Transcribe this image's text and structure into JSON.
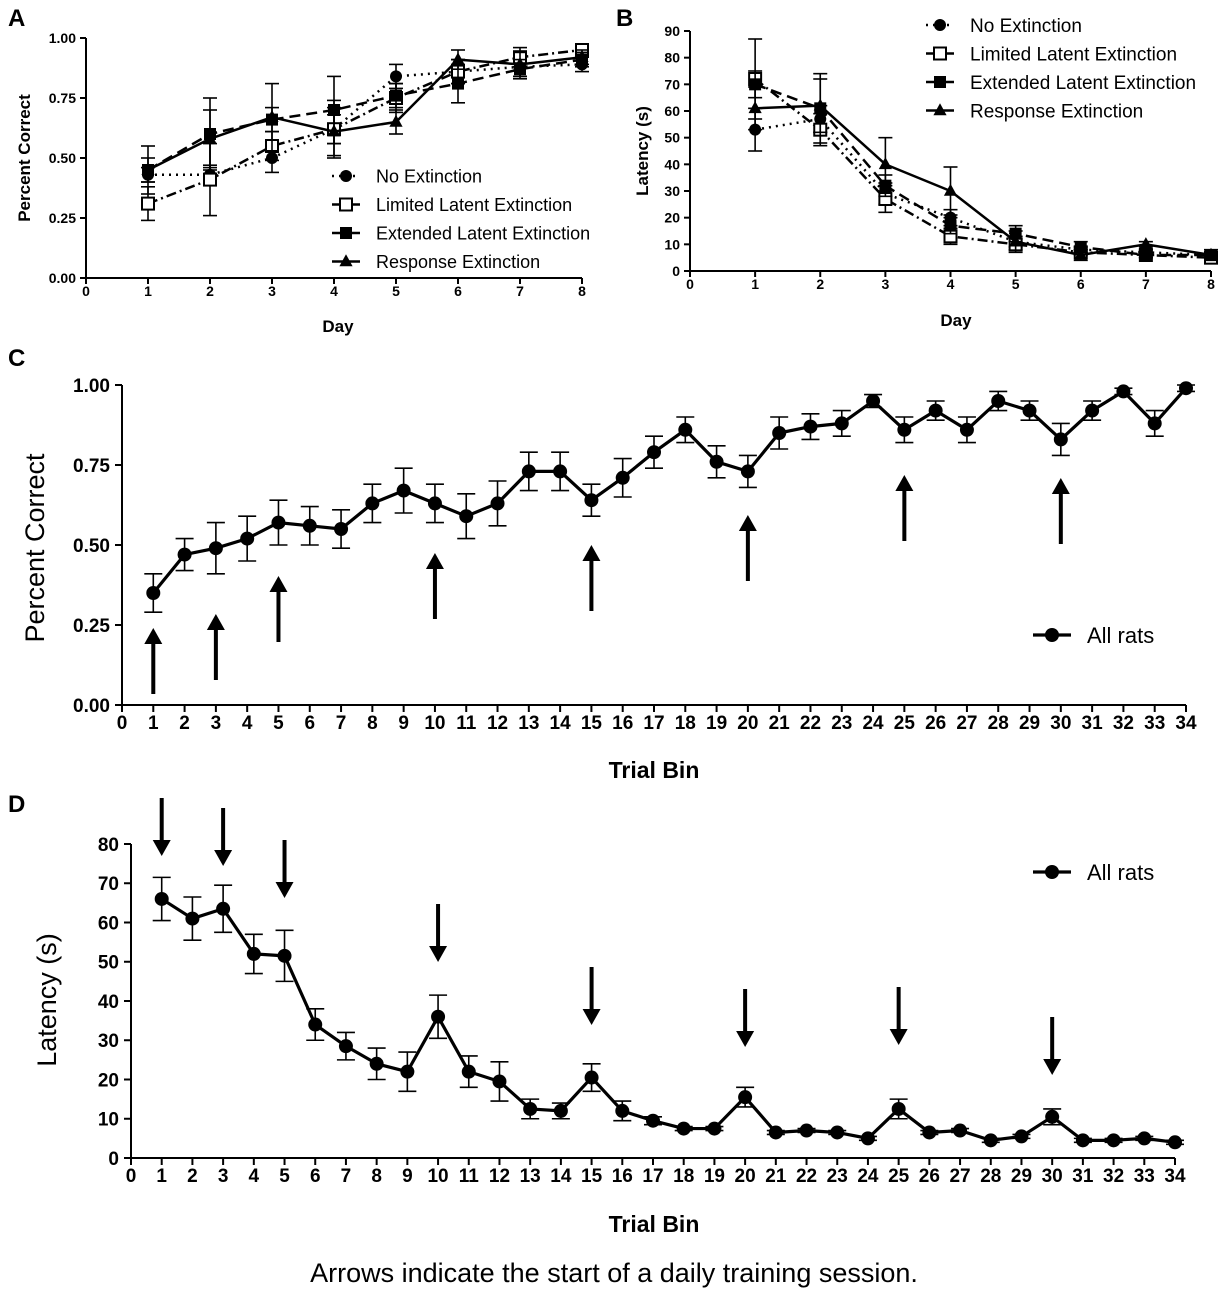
{
  "caption": "Arrows indicate the start of a daily training session.",
  "chart_data": [
    {
      "panel": "A",
      "type": "line",
      "xlabel": "Day",
      "ylabel": "Percent Correct",
      "xlim": [
        0,
        8
      ],
      "ylim": [
        0,
        1
      ],
      "x_ticks": [
        "0",
        "1",
        "2",
        "3",
        "4",
        "5",
        "6",
        "7",
        "8"
      ],
      "y_ticks": [
        "0.00",
        "0.25",
        "0.50",
        "0.75",
        "1.00"
      ],
      "legend_position": "bottom-right",
      "x": [
        1,
        2,
        3,
        4,
        5,
        6,
        7,
        8
      ],
      "series": [
        {
          "name": "No Extinction",
          "marker": "circle",
          "style": "dotted",
          "values": [
            0.43,
            0.43,
            0.5,
            0.62,
            0.84,
            0.86,
            0.88,
            0.89
          ],
          "errors": [
            0.03,
            0.04,
            0.06,
            0.06,
            0.05,
            0.05,
            0.04,
            0.03
          ]
        },
        {
          "name": "Limited Latent Extinction",
          "marker": "square-open",
          "style": "dash-dot",
          "values": [
            0.31,
            0.41,
            0.55,
            0.62,
            0.75,
            0.86,
            0.92,
            0.95
          ],
          "errors": [
            0.07,
            0.15,
            0.06,
            0.12,
            0.06,
            0.05,
            0.04,
            0.02
          ]
        },
        {
          "name": "Extended Latent Extinction",
          "marker": "square",
          "style": "dashed",
          "values": [
            0.45,
            0.6,
            0.66,
            0.7,
            0.76,
            0.81,
            0.87,
            0.91
          ],
          "errors": [
            0.05,
            0.15,
            0.05,
            0.14,
            0.05,
            0.08,
            0.04,
            0.03
          ]
        },
        {
          "name": "Response Extinction",
          "marker": "triangle",
          "style": "solid",
          "values": [
            0.45,
            0.58,
            0.67,
            0.61,
            0.65,
            0.91,
            0.89,
            0.92
          ],
          "errors": [
            0.1,
            0.12,
            0.14,
            0.1,
            0.05,
            0.04,
            0.05,
            0.03
          ]
        }
      ]
    },
    {
      "panel": "B",
      "type": "line",
      "xlabel": "Day",
      "ylabel": "Latency (s)",
      "xlim": [
        0,
        8
      ],
      "ylim": [
        0,
        90
      ],
      "x_ticks": [
        "0",
        "1",
        "2",
        "3",
        "4",
        "5",
        "6",
        "7",
        "8"
      ],
      "y_ticks": [
        "0",
        "10",
        "20",
        "30",
        "40",
        "50",
        "60",
        "70",
        "80",
        "90"
      ],
      "legend_position": "top-right",
      "x": [
        1,
        2,
        3,
        4,
        5,
        6,
        7,
        8
      ],
      "series": [
        {
          "name": "No Extinction",
          "marker": "circle",
          "style": "dotted",
          "values": [
            53,
            57,
            29,
            20,
            11,
            8,
            7,
            6
          ],
          "errors": [
            8,
            5,
            4,
            3,
            2,
            1,
            1,
            1
          ]
        },
        {
          "name": "Limited Latent Extinction",
          "marker": "square-open",
          "style": "dash-dot",
          "values": [
            72,
            53,
            27,
            13,
            10,
            7,
            6,
            5
          ],
          "errors": [
            15,
            6,
            5,
            3,
            2,
            1,
            1,
            1
          ]
        },
        {
          "name": "Extended Latent Extinction",
          "marker": "square",
          "style": "dashed",
          "values": [
            70,
            61,
            32,
            17,
            14,
            9,
            6,
            6
          ],
          "errors": [
            5,
            13,
            4,
            3,
            3,
            2,
            1,
            1
          ]
        },
        {
          "name": "Response Extinction",
          "marker": "triangle",
          "style": "solid",
          "values": [
            61,
            62,
            40,
            30,
            11,
            6,
            10,
            6
          ],
          "errors": [
            8,
            10,
            10,
            9,
            4,
            2,
            1,
            2
          ]
        }
      ]
    },
    {
      "panel": "C",
      "type": "line",
      "xlabel": "Trial Bin",
      "ylabel": "Percent Correct",
      "xlim": [
        0,
        34
      ],
      "ylim": [
        0,
        1
      ],
      "x_ticks": [
        "0",
        "1",
        "2",
        "3",
        "4",
        "5",
        "6",
        "7",
        "8",
        "9",
        "10",
        "11",
        "12",
        "13",
        "14",
        "15",
        "16",
        "17",
        "18",
        "19",
        "20",
        "21",
        "22",
        "23",
        "24",
        "25",
        "26",
        "27",
        "28",
        "29",
        "30",
        "31",
        "32",
        "33",
        "34"
      ],
      "y_ticks": [
        "0.00",
        "0.25",
        "0.50",
        "0.75",
        "1.00"
      ],
      "legend_position": "right",
      "arrow_bins": [
        1,
        3,
        5,
        10,
        15,
        20,
        25,
        30
      ],
      "arrow_direction": "up",
      "series": [
        {
          "name": "All rats",
          "marker": "circle",
          "style": "solid",
          "x": [
            1,
            2,
            3,
            4,
            5,
            6,
            7,
            8,
            9,
            10,
            11,
            12,
            13,
            14,
            15,
            16,
            17,
            18,
            19,
            20,
            21,
            22,
            23,
            24,
            25,
            26,
            27,
            28,
            29,
            30,
            31,
            32,
            33,
            34
          ],
          "values": [
            0.35,
            0.47,
            0.49,
            0.52,
            0.57,
            0.56,
            0.55,
            0.63,
            0.67,
            0.63,
            0.59,
            0.63,
            0.73,
            0.73,
            0.64,
            0.71,
            0.79,
            0.86,
            0.76,
            0.73,
            0.85,
            0.87,
            0.88,
            0.95,
            0.86,
            0.92,
            0.86,
            0.95,
            0.92,
            0.83,
            0.92,
            0.98,
            0.88,
            0.99
          ],
          "errors": [
            0.06,
            0.05,
            0.08,
            0.07,
            0.07,
            0.06,
            0.06,
            0.06,
            0.07,
            0.06,
            0.07,
            0.07,
            0.06,
            0.06,
            0.05,
            0.06,
            0.05,
            0.04,
            0.05,
            0.05,
            0.05,
            0.04,
            0.04,
            0.02,
            0.04,
            0.03,
            0.04,
            0.03,
            0.03,
            0.05,
            0.03,
            0.01,
            0.04,
            0.01
          ]
        }
      ]
    },
    {
      "panel": "D",
      "type": "line",
      "xlabel": "Trial Bin",
      "ylabel": "Latency (s)",
      "xlim": [
        0,
        34
      ],
      "ylim": [
        0,
        80
      ],
      "x_ticks": [
        "0",
        "1",
        "2",
        "3",
        "4",
        "5",
        "6",
        "7",
        "8",
        "9",
        "10",
        "11",
        "12",
        "13",
        "14",
        "15",
        "16",
        "17",
        "18",
        "19",
        "20",
        "21",
        "22",
        "23",
        "24",
        "25",
        "26",
        "27",
        "28",
        "29",
        "30",
        "31",
        "32",
        "33",
        "34"
      ],
      "y_ticks": [
        "0",
        "10",
        "20",
        "30",
        "40",
        "50",
        "60",
        "70",
        "80"
      ],
      "legend_position": "top-right",
      "arrow_bins": [
        1,
        3,
        5,
        10,
        15,
        20,
        25,
        30
      ],
      "arrow_direction": "down",
      "series": [
        {
          "name": "All rats",
          "marker": "circle",
          "style": "solid",
          "x": [
            1,
            2,
            3,
            4,
            5,
            6,
            7,
            8,
            9,
            10,
            11,
            12,
            13,
            14,
            15,
            16,
            17,
            18,
            19,
            20,
            21,
            22,
            23,
            24,
            25,
            26,
            27,
            28,
            29,
            30,
            31,
            32,
            33,
            34
          ],
          "values": [
            66,
            61,
            63.5,
            52,
            51.5,
            34,
            28.5,
            24,
            22,
            36,
            22,
            19.5,
            12.5,
            12,
            20.5,
            12,
            9.5,
            7.5,
            7.5,
            15.5,
            6.5,
            7,
            6.5,
            5,
            12.5,
            6.5,
            7,
            4.5,
            5.5,
            10.5,
            4.5,
            4.5,
            5,
            4
          ],
          "errors": [
            5.5,
            5.5,
            6,
            5,
            6.5,
            4,
            3.5,
            4,
            5,
            5.5,
            4,
            5,
            2.5,
            2,
            3.5,
            2.5,
            1,
            0.5,
            0.5,
            2.5,
            0.5,
            0.5,
            0.5,
            0.5,
            2.5,
            0.5,
            0.5,
            0.5,
            0.5,
            2,
            0.5,
            0.5,
            0.5,
            0.5
          ]
        }
      ]
    }
  ]
}
